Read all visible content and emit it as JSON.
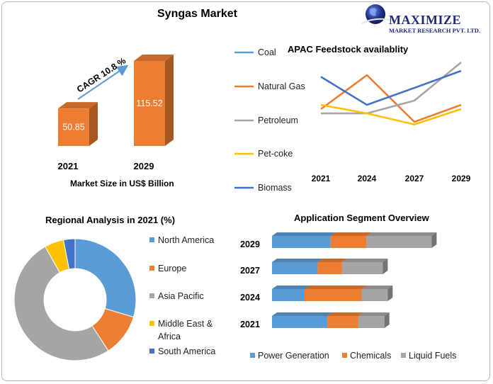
{
  "main_title": "Syngas Market",
  "logo": {
    "name": "MAXIMIZE",
    "subtitle": "MARKET RESEARCH PVT. LTD."
  },
  "market_size": {
    "years": [
      "2021",
      "2029"
    ],
    "values": [
      50.85,
      115.52
    ],
    "value_labels": [
      "50.85",
      "115.52"
    ],
    "cagr": "CAGR 10.8 %",
    "xlabel": "Market Size in US$ Billion",
    "color": "#ed7d31"
  },
  "chart_data": [
    {
      "type": "bar",
      "title": "Syngas Market",
      "categories": [
        "2021",
        "2029"
      ],
      "values": [
        50.85,
        115.52
      ],
      "xlabel": "Market Size in US$ Billion",
      "annotation": "CAGR 10.8 %"
    },
    {
      "type": "line",
      "title": "APAC Feedstock availablity",
      "x": [
        "2021",
        "2024",
        "2027",
        "2029"
      ],
      "ylim": [
        0,
        10
      ],
      "legend_position": "left",
      "series": [
        {
          "name": "Coal",
          "values": [
            null,
            null,
            null,
            null
          ],
          "color": "#5b9bd5"
        },
        {
          "name": "Natural Gas",
          "values": [
            4.5,
            8.5,
            3.0,
            5.0
          ],
          "color": "#ed7d31"
        },
        {
          "name": "Petroleum",
          "values": [
            4.0,
            4.0,
            5.5,
            10.0
          ],
          "color": "#a5a5a5"
        },
        {
          "name": "Pet-coke",
          "values": [
            5.0,
            4.0,
            2.7,
            4.5
          ],
          "color": "#ffc000"
        },
        {
          "name": "Biomass",
          "values": [
            8.3,
            5.0,
            7.0,
            9.0
          ],
          "color": "#4472c4"
        }
      ]
    },
    {
      "type": "pie",
      "title": "Regional Analysis in 2021 (%)",
      "labels": [
        "North America",
        "Europe",
        "Asia Pacific",
        "Middle East & Africa",
        "South America"
      ],
      "values": [
        29,
        11,
        50,
        5,
        3
      ],
      "colors": [
        "#5b9bd5",
        "#ed7d31",
        "#a5a5a5",
        "#ffc000",
        "#4472c4"
      ]
    },
    {
      "type": "bar",
      "title": "Application Segment Overview",
      "categories": [
        "2029",
        "2027",
        "2024",
        "2021"
      ],
      "stacked": true,
      "orientation": "horizontal",
      "legend_position": "bottom",
      "series": [
        {
          "name": "Power Generation",
          "values": [
            36,
            28,
            20,
            34
          ],
          "color": "#5b9bd5"
        },
        {
          "name": "Chemicals",
          "values": [
            22,
            15,
            35,
            19
          ],
          "color": "#ed7d31"
        },
        {
          "name": "Liquid Fuels",
          "values": [
            40,
            25,
            16,
            16
          ],
          "color": "#a5a5a5"
        }
      ]
    }
  ]
}
